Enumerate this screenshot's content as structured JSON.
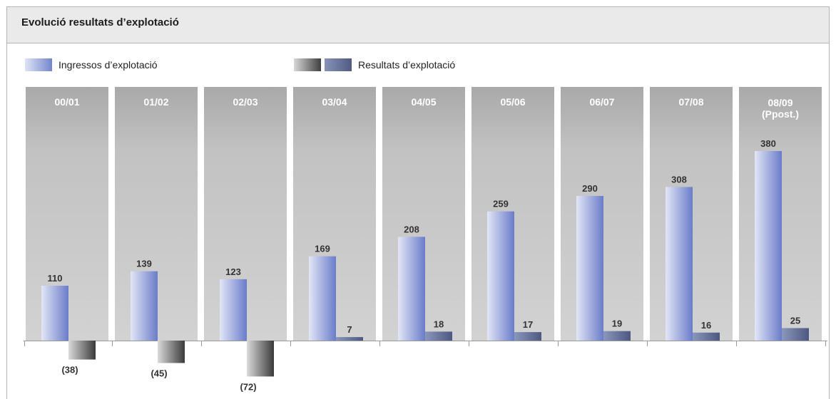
{
  "title": "Evolució resultats d’explotació",
  "chart_data": {
    "type": "bar",
    "title": "Evolució resultats d’explotació",
    "xlabel": "",
    "ylabel": "",
    "grid": false,
    "legend": "top-left",
    "categories": [
      [
        "00/01"
      ],
      [
        "01/02"
      ],
      [
        "02/03"
      ],
      [
        "03/04"
      ],
      [
        "04/05"
      ],
      [
        "05/06"
      ],
      [
        "06/07"
      ],
      [
        "07/08"
      ],
      [
        "08/09",
        "(Ppost.)"
      ]
    ],
    "series": [
      {
        "name": "Ingressos d’explotació",
        "values": [
          110,
          139,
          123,
          169,
          208,
          259,
          290,
          308,
          380
        ],
        "value_labels": [
          "110",
          "139",
          "123",
          "169",
          "208",
          "259",
          "290",
          "308",
          "380"
        ],
        "color": "#7f8fd0"
      },
      {
        "name": "Resultats d’explotació",
        "values": [
          -38,
          -45,
          -72,
          7,
          18,
          17,
          19,
          16,
          25
        ],
        "value_labels": [
          "(38)",
          "(45)",
          "(72)",
          "7",
          "18",
          "17",
          "19",
          "16",
          "25"
        ],
        "color": "#5b6890",
        "negative_color": "#5a5a5a"
      }
    ]
  },
  "colors": {
    "column_background": "#c4c4c4",
    "column_header": "#a8a8a8",
    "title_bar": "#eaeaea",
    "axis": "#999999"
  }
}
